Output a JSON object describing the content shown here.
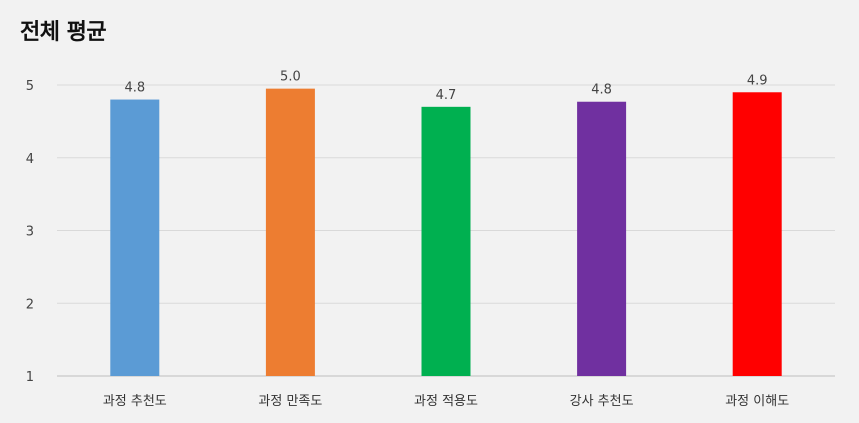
{
  "chart_data": {
    "type": "bar",
    "title": "전체 평균",
    "categories": [
      "과정 추천도",
      "과정 만족도",
      "과정 적용도",
      "강사 추천도",
      "과정 이해도"
    ],
    "values": [
      4.8,
      4.95,
      4.7,
      4.77,
      4.9
    ],
    "data_labels": [
      "4.8",
      "5.0",
      "4.7",
      "4.8",
      "4.9"
    ],
    "colors": [
      "#5b9bd5",
      "#ed7d31",
      "#00b050",
      "#7030a0",
      "#ff0000"
    ],
    "ylim": [
      1,
      5
    ],
    "yticks": [
      "1",
      "2",
      "3",
      "4",
      "5"
    ],
    "grid": true,
    "legend": "none"
  }
}
